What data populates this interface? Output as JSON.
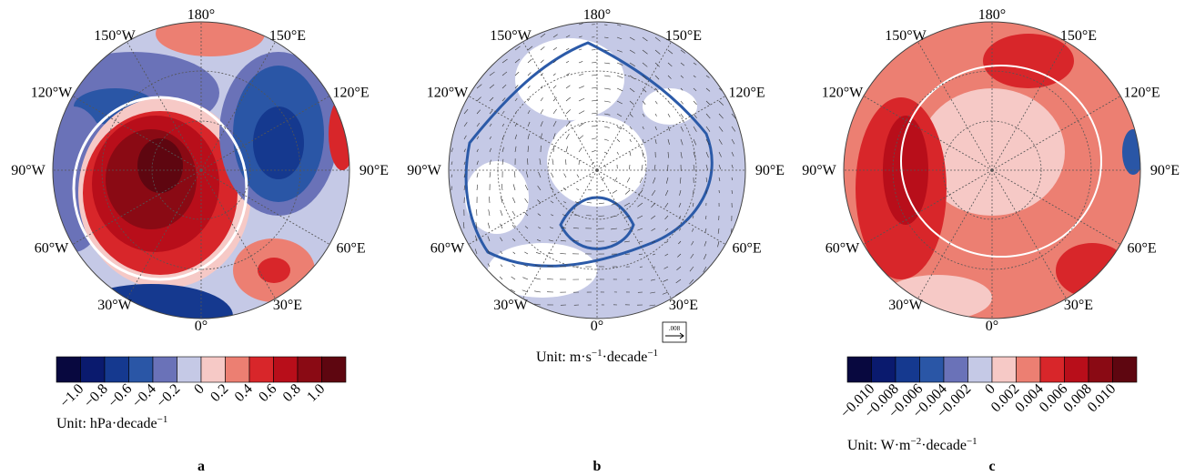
{
  "panels": [
    {
      "letter": "a",
      "lon_labels": [
        "180°",
        "150°E",
        "120°E",
        "90°E",
        "60°E",
        "30°E",
        "0°",
        "30°W",
        "60°W",
        "90°W",
        "120°W",
        "150°W"
      ],
      "colorbar": {
        "colors": [
          "#08083f",
          "#0a1a6e",
          "#15398f",
          "#2a56a6",
          "#6a72b8",
          "#c5c9e6",
          "#f6c9c6",
          "#ec7f72",
          "#d8262a",
          "#b80e1a",
          "#8a0a14",
          "#5e0610"
        ],
        "tick_labels": [
          "−1.0",
          "−0.8",
          "−0.6",
          "−0.4",
          "−0.2",
          "0",
          "0.2",
          "0.4",
          "0.6",
          "0.8",
          "1.0"
        ]
      },
      "unit": [
        "Unit: hPa·decade",
        "−1"
      ]
    },
    {
      "letter": "b",
      "lon_labels": [
        "180°",
        "150°E",
        "120°E",
        "90°E",
        "60°E",
        "30°E",
        "0°",
        "30°W",
        "60°W",
        "90°W",
        "120°W",
        "150°W"
      ],
      "vector_key": ".008",
      "unit": [
        "Unit: m·s",
        "−1",
        "·decade",
        "−1"
      ]
    },
    {
      "letter": "c",
      "lon_labels": [
        "180°",
        "150°E",
        "120°E",
        "90°E",
        "60°E",
        "30°E",
        "0°",
        "30°W",
        "60°W",
        "90°W",
        "120°W",
        "150°W"
      ],
      "colorbar": {
        "colors": [
          "#08083f",
          "#0a1a6e",
          "#15398f",
          "#2a56a6",
          "#6a72b8",
          "#c5c9e6",
          "#f6c9c6",
          "#ec7f72",
          "#d8262a",
          "#b80e1a",
          "#8a0a14",
          "#5e0610"
        ],
        "tick_labels": [
          "−0.010",
          "−0.008",
          "−0.006",
          "−0.004",
          "−0.002",
          "0",
          "0.002",
          "0.004",
          "0.006",
          "0.008",
          "0.010"
        ]
      },
      "unit": [
        "Unit: W·m",
        "−2",
        "·decade",
        "−1"
      ]
    }
  ]
}
